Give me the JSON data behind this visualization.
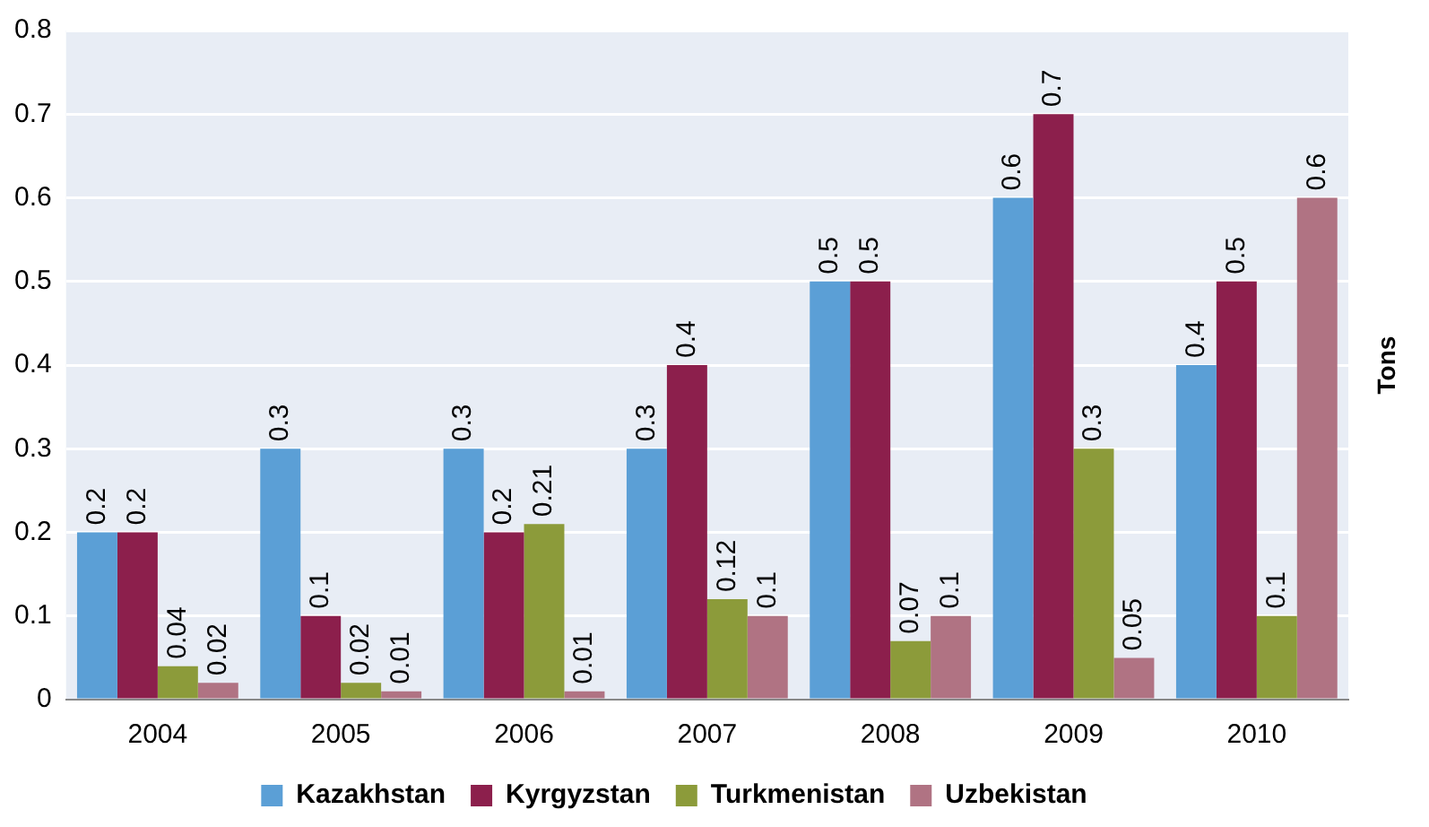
{
  "chart_data": {
    "type": "bar",
    "ylabel": "Tons",
    "categories": [
      "2004",
      "2005",
      "2006",
      "2007",
      "2008",
      "2009",
      "2010"
    ],
    "series": [
      {
        "name": "Kazakhstan",
        "color": "#5b9fd6",
        "values": [
          0.2,
          0.3,
          0.3,
          0.3,
          0.5,
          0.6,
          0.4
        ]
      },
      {
        "name": "Kyrgyzstan",
        "color": "#8c1f4c",
        "values": [
          0.2,
          0.1,
          0.2,
          0.4,
          0.5,
          0.7,
          0.5
        ]
      },
      {
        "name": "Turkmenistan",
        "color": "#8c9b3a",
        "values": [
          0.04,
          0.02,
          0.21,
          0.12,
          0.07,
          0.3,
          0.1
        ]
      },
      {
        "name": "Uzbekistan",
        "color": "#b07383",
        "values": [
          0.02,
          0.01,
          0.01,
          0.1,
          0.1,
          0.05,
          0.6
        ]
      }
    ],
    "ylim": [
      0,
      0.8
    ],
    "yticks": [
      0,
      0.1,
      0.2,
      0.3,
      0.4,
      0.5,
      0.6,
      0.7,
      0.8
    ],
    "grid": "y",
    "legend": "bottom",
    "data_labels": true
  }
}
